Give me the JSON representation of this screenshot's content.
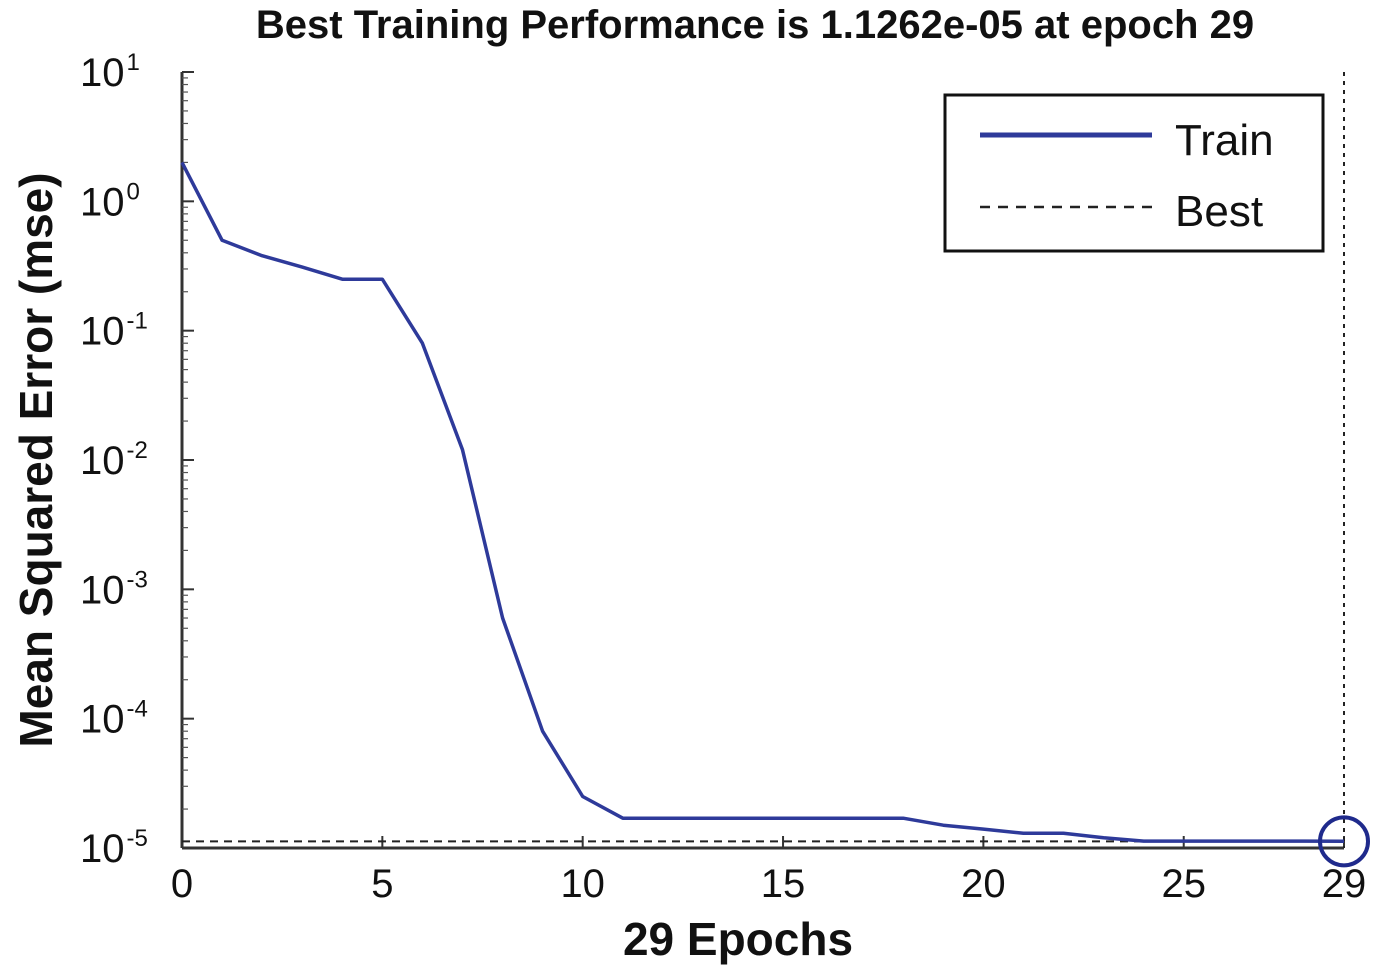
{
  "chart_data": {
    "type": "line",
    "title": "Best Training Performance is 1.1262e-05 at epoch 29",
    "xlabel": "29 Epochs",
    "ylabel": "Mean Squared Error  (mse)",
    "xscale": "linear",
    "yscale": "log",
    "xlim": [
      0,
      29
    ],
    "ylim": [
      1e-05,
      10
    ],
    "x_ticks": [
      "0",
      "5",
      "10",
      "15",
      "20",
      "25",
      "29"
    ],
    "y_ticks": [
      {
        "base": "10",
        "exp": "1",
        "value": 10
      },
      {
        "base": "10",
        "exp": "0",
        "value": 1
      },
      {
        "base": "10",
        "exp": "-1",
        "value": 0.1
      },
      {
        "base": "10",
        "exp": "-2",
        "value": 0.01
      },
      {
        "base": "10",
        "exp": "-3",
        "value": 0.001
      },
      {
        "base": "10",
        "exp": "-4",
        "value": 0.0001
      },
      {
        "base": "10",
        "exp": "-5",
        "value": 1e-05
      }
    ],
    "grid": false,
    "legend_position": "top-right",
    "series": [
      {
        "name": "Train",
        "color": "#2e3a9a",
        "style": "solid",
        "x": [
          0,
          1,
          2,
          3,
          4,
          5,
          6,
          7,
          8,
          9,
          10,
          11,
          12,
          13,
          14,
          15,
          16,
          17,
          18,
          19,
          20,
          21,
          22,
          23,
          24,
          25,
          26,
          27,
          28,
          29
        ],
        "y": [
          2.0,
          0.5,
          0.38,
          0.31,
          0.25,
          0.25,
          0.08,
          0.012,
          0.0006,
          8e-05,
          2.5e-05,
          1.7e-05,
          1.7e-05,
          1.7e-05,
          1.7e-05,
          1.7e-05,
          1.7e-05,
          1.7e-05,
          1.7e-05,
          1.5e-05,
          1.4e-05,
          1.3e-05,
          1.3e-05,
          1.2e-05,
          1.13e-05,
          1.13e-05,
          1.13e-05,
          1.13e-05,
          1.13e-05,
          1.1262e-05
        ]
      },
      {
        "name": "Best",
        "color": "#222222",
        "style": "dashed",
        "horizontal_y": 1.1262e-05,
        "vertical_x": 29
      }
    ],
    "best_marker": {
      "x": 29,
      "y": 1.1262e-05,
      "color": "#1f2a8c"
    }
  }
}
